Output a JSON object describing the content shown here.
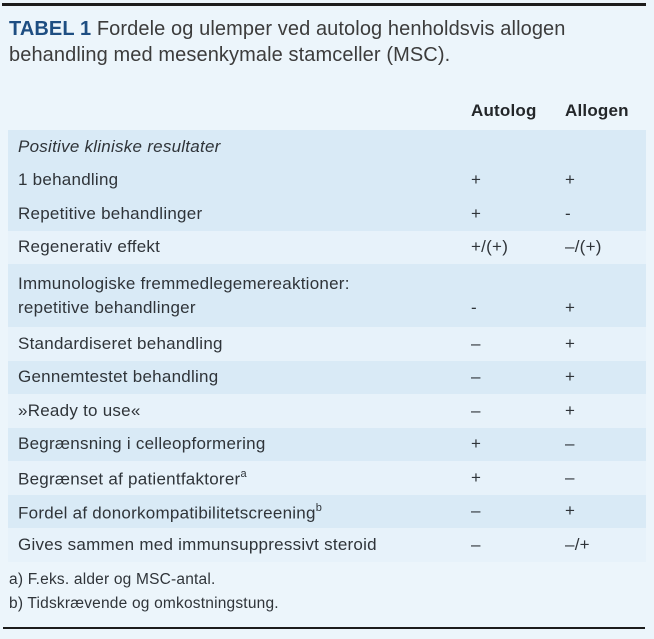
{
  "title": {
    "tag": "TABEL 1",
    "text": " Fordele og ulemper ved autolog henholdsvis allogen behandling med mesenkymale stamceller (MSC)."
  },
  "columns": {
    "autolog": "Autolog",
    "allogen": "Allogen"
  },
  "table": {
    "rows": [
      {
        "type": "section",
        "label": "Positive kliniske resultater",
        "autolog": "",
        "allogen": "",
        "shade": "dark"
      },
      {
        "label": "1 behandling",
        "autolog": "+",
        "allogen": "+",
        "shade": "dark"
      },
      {
        "label": "Repetitive behandlinger",
        "autolog": "+",
        "allogen": "-",
        "shade": "dark"
      },
      {
        "label": "Regenerativ effekt",
        "autolog": "+/(+)",
        "allogen": "–/(+)",
        "shade": "light"
      },
      {
        "label": "Immunologiske fremmedlegemereaktioner:",
        "label2": "repetitive behandlinger",
        "autolog": "-",
        "allogen": "+",
        "shade": "dark"
      },
      {
        "label": "Standardiseret behandling",
        "autolog": "–",
        "allogen": "+",
        "shade": "light"
      },
      {
        "label": "Gennemtestet behandling",
        "autolog": "–",
        "allogen": "+",
        "shade": "dark"
      },
      {
        "label": "»Ready to use«",
        "autolog": "–",
        "allogen": "+",
        "shade": "light"
      },
      {
        "label": "Begrænsning i celleopformering",
        "autolog": "+",
        "allogen": "–",
        "shade": "dark"
      },
      {
        "label": "Begrænset af patientfaktorer",
        "sup": "a",
        "autolog": "+",
        "allogen": "–",
        "shade": "light"
      },
      {
        "label": "Fordel af donorkompatibilitetscreening",
        "sup": "b",
        "autolog": "–",
        "allogen": "+",
        "shade": "dark"
      },
      {
        "label": "Gives sammen med immunsuppressivt steroid",
        "autolog": "–",
        "allogen": "–/+",
        "shade": "light"
      }
    ]
  },
  "footnotes": {
    "a": "a) F.eks. alder og MSC-antal.",
    "b": "b) Tidskrævende og omkostningstung."
  },
  "colors": {
    "accent": "#1e4e82",
    "band_dark": "#d9eaf6",
    "band_light": "#e7f2fa",
    "page_bg": "#ecf5fb",
    "rule": "#1c1c1c",
    "text": "#2f3439"
  }
}
